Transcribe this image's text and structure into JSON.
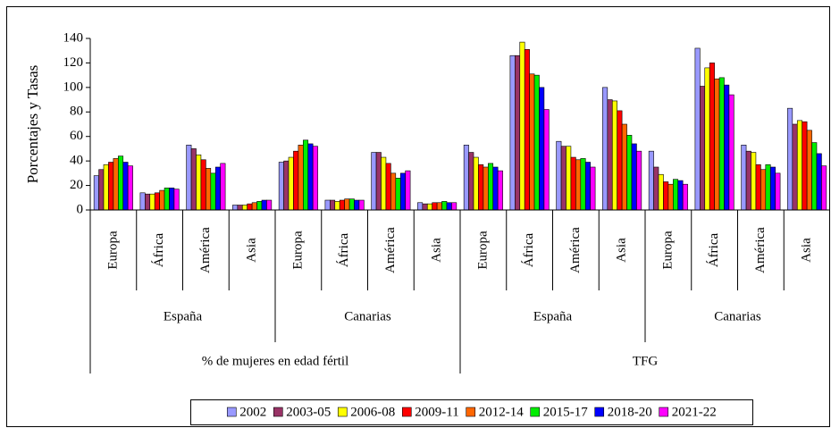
{
  "chart_data": {
    "type": "bar",
    "y_label": "Porcentajes y Tasas",
    "categories": [
      "Europa",
      "África",
      "América",
      "Asia",
      "Europa",
      "África",
      "América",
      "Asia",
      "Europa",
      "África",
      "América",
      "Asia",
      "Europa",
      "África",
      "América",
      "Asia"
    ],
    "group_labels": [
      "España",
      "Canarias",
      "España",
      "Canarias"
    ],
    "supergroup_labels": [
      "% de mujeres en edad fértil",
      "TFG"
    ],
    "series": [
      {
        "name": "2002",
        "color": "#9999ff",
        "values": [
          28,
          14,
          53,
          4,
          39,
          8,
          47,
          6,
          53,
          126,
          56,
          100,
          48,
          132,
          53,
          83
        ]
      },
      {
        "name": "2003-05",
        "color": "#993366",
        "values": [
          33,
          13,
          50,
          4,
          40,
          8,
          47,
          5,
          47,
          126,
          52,
          90,
          35,
          101,
          48,
          70
        ]
      },
      {
        "name": "2006-08",
        "color": "#ffff00",
        "values": [
          37,
          13,
          45,
          4,
          43,
          7,
          43,
          5,
          43,
          137,
          52,
          89,
          29,
          116,
          47,
          73
        ]
      },
      {
        "name": "2009-11",
        "color": "#ff0000",
        "values": [
          39,
          14,
          41,
          5,
          48,
          8,
          38,
          6,
          37,
          131,
          43,
          81,
          23,
          120,
          37,
          72
        ]
      },
      {
        "name": "2012-14",
        "color": "#ff6600",
        "values": [
          42,
          16,
          34,
          6,
          53,
          9,
          30,
          6,
          35,
          111,
          41,
          70,
          21,
          107,
          33,
          65
        ]
      },
      {
        "name": "2015-17",
        "color": "#00ee00",
        "values": [
          44,
          18,
          30,
          7,
          57,
          9,
          26,
          7,
          38,
          110,
          42,
          61,
          25,
          108,
          37,
          55
        ]
      },
      {
        "name": "2018-20",
        "color": "#0000ff",
        "values": [
          39,
          18,
          35,
          8,
          54,
          8,
          30,
          6,
          35,
          100,
          39,
          54,
          24,
          102,
          35,
          46
        ]
      },
      {
        "name": "2021-22",
        "color": "#ff00ff",
        "values": [
          36,
          17,
          38,
          8,
          52,
          8,
          32,
          6,
          32,
          82,
          35,
          48,
          21,
          94,
          30,
          36
        ]
      }
    ],
    "ylim": [
      0,
      140
    ],
    "yticks": [
      0,
      20,
      40,
      60,
      80,
      100,
      120,
      140
    ],
    "grid": false
  }
}
